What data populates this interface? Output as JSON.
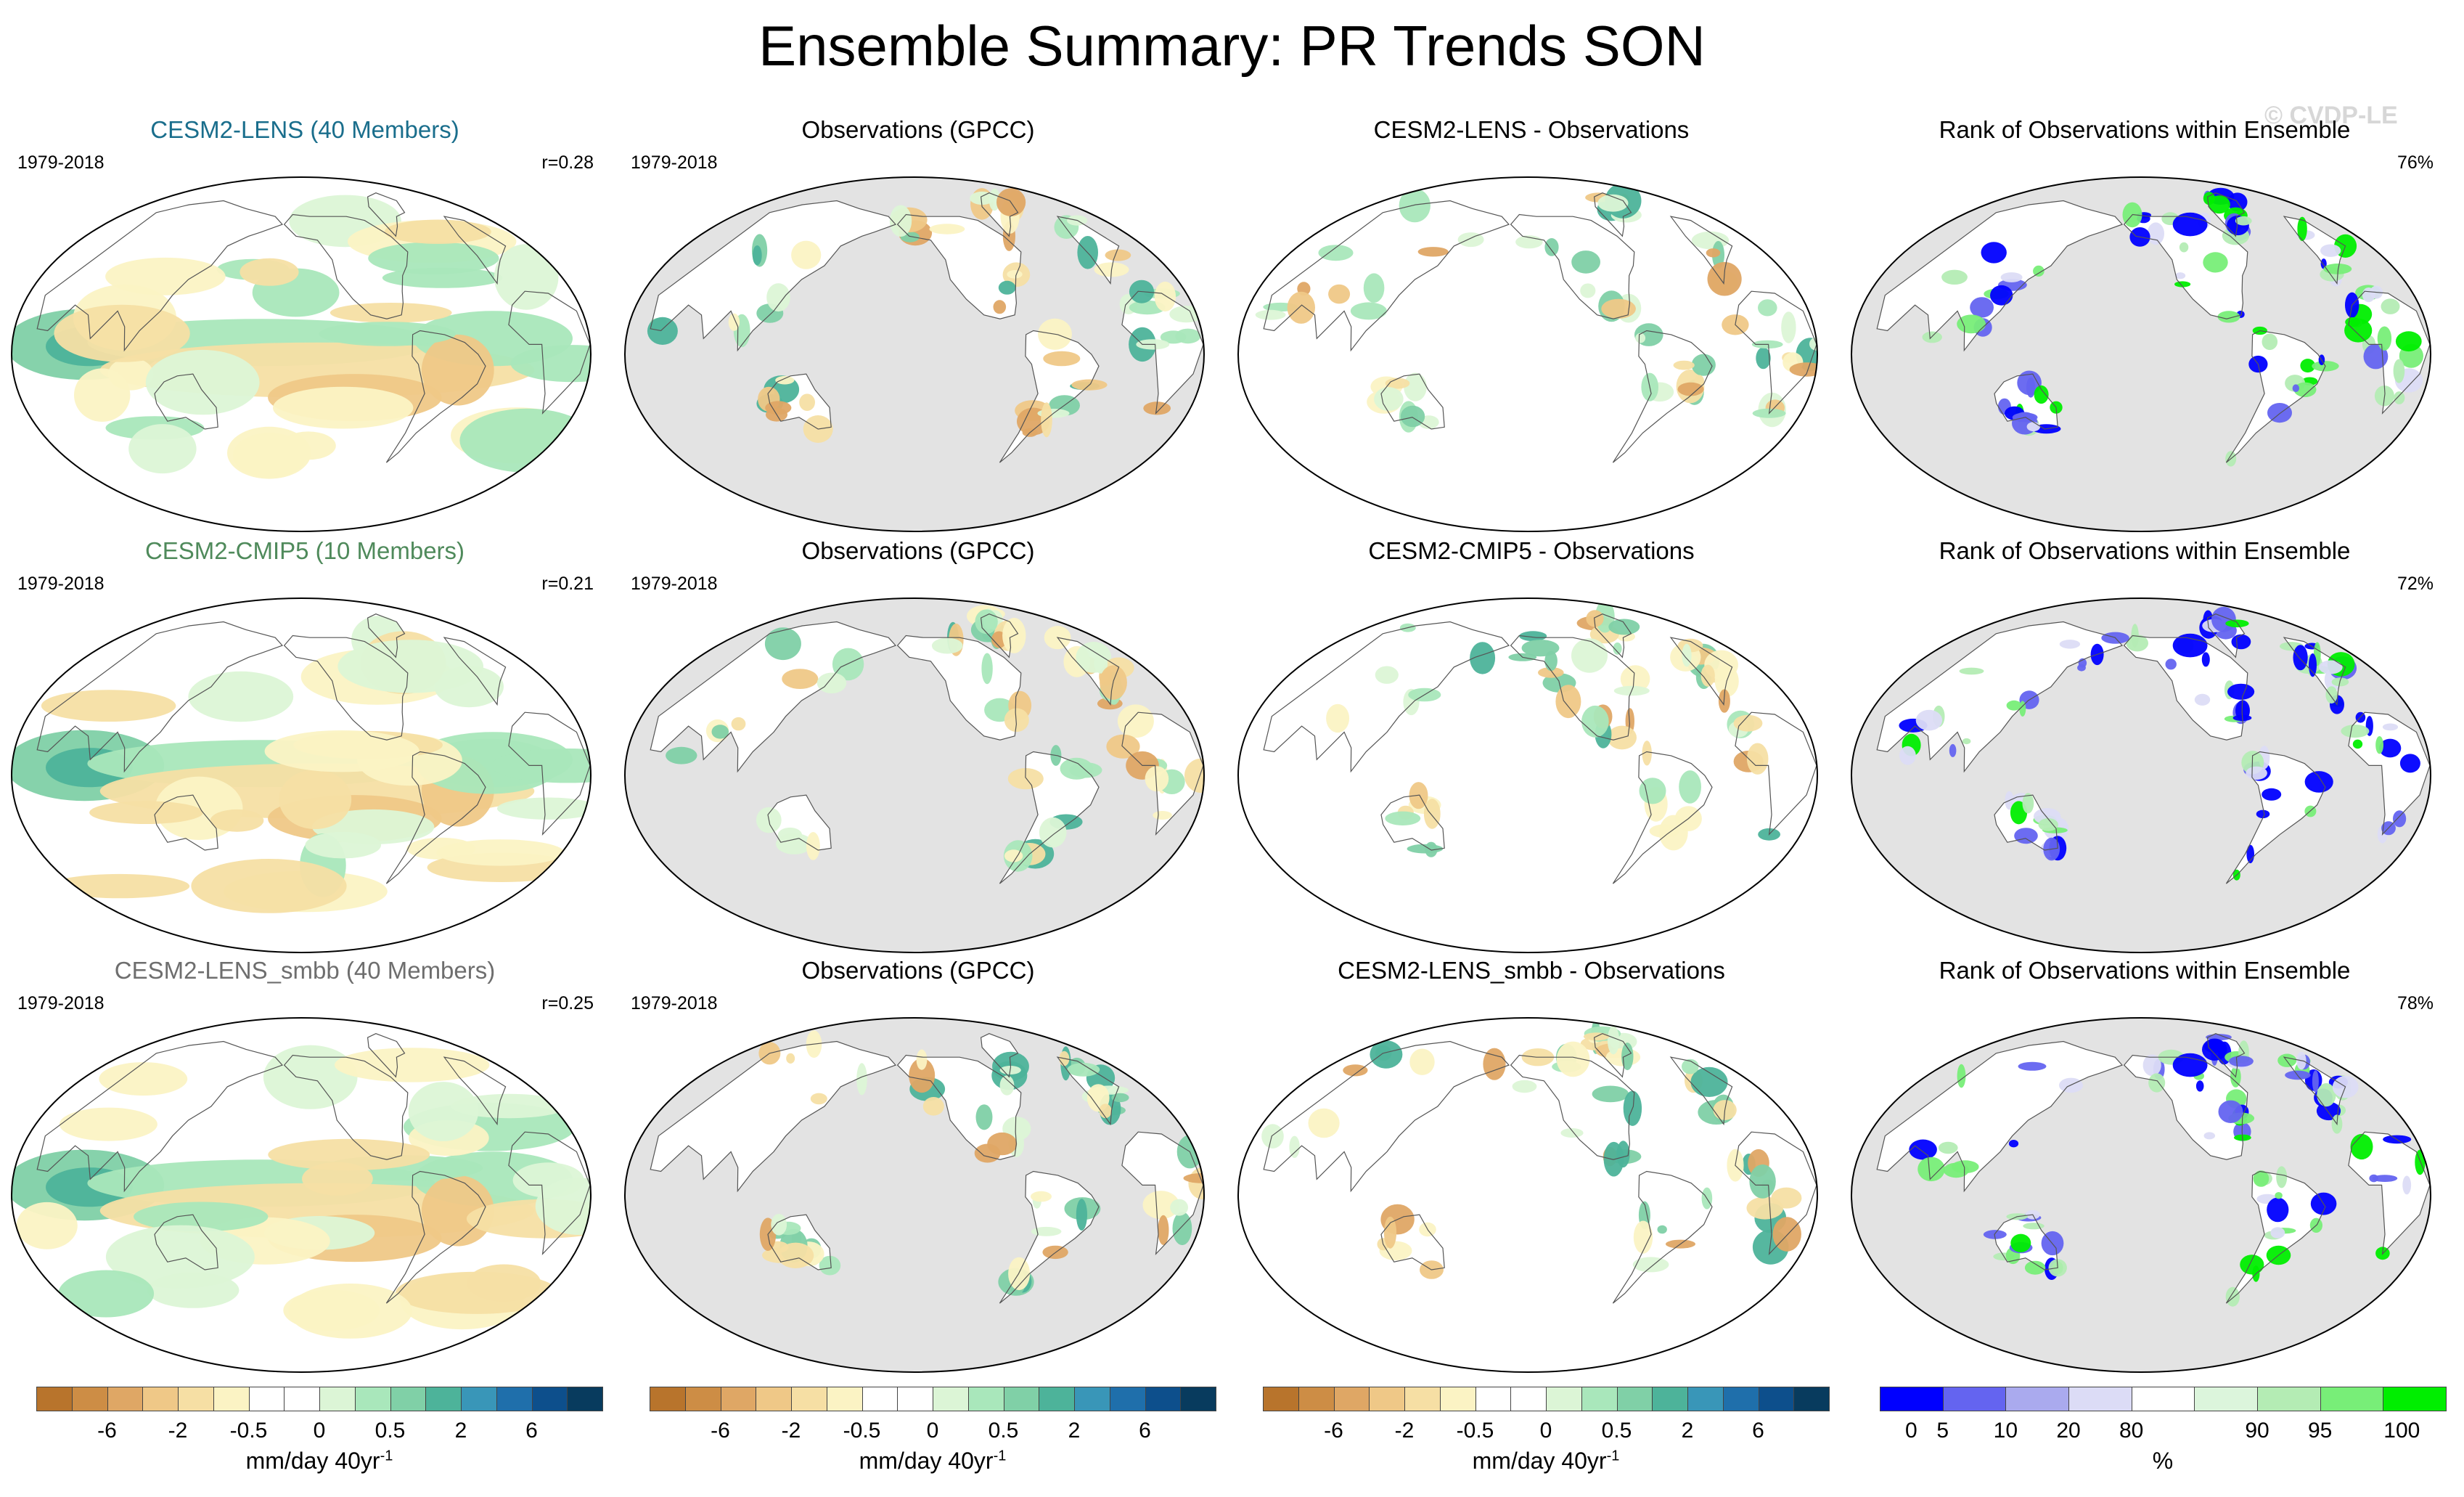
{
  "figure": {
    "title": "Ensemble Summary: PR Trends SON",
    "watermark": "© CVDP-LE"
  },
  "chart_data": [
    {
      "type": "heatmap",
      "row": 1,
      "col": 1,
      "panel_type": "model",
      "title": "CESM2-LENS (40 Members)",
      "title_color": "#1a6e8c",
      "period": "1979-2018",
      "stat": "r=0.28",
      "colorscale": "trend"
    },
    {
      "type": "heatmap",
      "row": 1,
      "col": 2,
      "panel_type": "obs",
      "title": "Observations (GPCC)",
      "title_color": "#000000",
      "period": "1979-2018",
      "stat": "",
      "colorscale": "trend"
    },
    {
      "type": "heatmap",
      "row": 1,
      "col": 3,
      "panel_type": "diff",
      "title": "CESM2-LENS - Observations",
      "title_color": "#000000",
      "period": "",
      "stat": "",
      "colorscale": "trend"
    },
    {
      "type": "heatmap",
      "row": 1,
      "col": 4,
      "panel_type": "rank",
      "title": "Rank of Observations within Ensemble",
      "title_color": "#000000",
      "period": "",
      "stat": "76%",
      "colorscale": "rank"
    },
    {
      "type": "heatmap",
      "row": 2,
      "col": 1,
      "panel_type": "model",
      "title": "CESM2-CMIP5 (10 Members)",
      "title_color": "#4f8a5b",
      "period": "1979-2018",
      "stat": "r=0.21",
      "colorscale": "trend"
    },
    {
      "type": "heatmap",
      "row": 2,
      "col": 2,
      "panel_type": "obs",
      "title": "Observations (GPCC)",
      "title_color": "#000000",
      "period": "1979-2018",
      "stat": "",
      "colorscale": "trend"
    },
    {
      "type": "heatmap",
      "row": 2,
      "col": 3,
      "panel_type": "diff",
      "title": "CESM2-CMIP5 - Observations",
      "title_color": "#000000",
      "period": "",
      "stat": "",
      "colorscale": "trend"
    },
    {
      "type": "heatmap",
      "row": 2,
      "col": 4,
      "panel_type": "rank",
      "title": "Rank of Observations within Ensemble",
      "title_color": "#000000",
      "period": "",
      "stat": "72%",
      "colorscale": "rank"
    },
    {
      "type": "heatmap",
      "row": 3,
      "col": 1,
      "panel_type": "model",
      "title": "CESM2-LENS_smbb (40 Members)",
      "title_color": "#6e6e6e",
      "period": "1979-2018",
      "stat": "r=0.25",
      "colorscale": "trend"
    },
    {
      "type": "heatmap",
      "row": 3,
      "col": 2,
      "panel_type": "obs",
      "title": "Observations (GPCC)",
      "title_color": "#000000",
      "period": "1979-2018",
      "stat": "",
      "colorscale": "trend"
    },
    {
      "type": "heatmap",
      "row": 3,
      "col": 3,
      "panel_type": "diff",
      "title": "CESM2-LENS_smbb - Observations",
      "title_color": "#000000",
      "period": "",
      "stat": "",
      "colorscale": "trend"
    },
    {
      "type": "heatmap",
      "row": 3,
      "col": 4,
      "panel_type": "rank",
      "title": "Rank of Observations within Ensemble",
      "title_color": "#000000",
      "period": "",
      "stat": "78%",
      "colorscale": "rank"
    }
  ],
  "colorbars": {
    "trend": {
      "colors": [
        "#b8742c",
        "#cd8d45",
        "#dfa765",
        "#efc887",
        "#f6dfa4",
        "#fbf3c4",
        "#ffffff",
        "#ffffff",
        "#dcf5d6",
        "#a9e7bb",
        "#80d0a7",
        "#4db39a",
        "#3996b8",
        "#1f6fab",
        "#0d4f8c",
        "#083b5e"
      ],
      "ticks": [
        "-6",
        "-2",
        "-0.5",
        "0",
        "0.5",
        "2",
        "6"
      ],
      "tick_boundaries": [
        2,
        4,
        6,
        8,
        10,
        12,
        14
      ],
      "label": "mm/day 40yr",
      "label_sup": "-1"
    },
    "rank": {
      "colors": [
        "#0000ff",
        "#6464f0",
        "#aaaaee",
        "#dcdcf6",
        "#ffffff",
        "#dcf5dc",
        "#b4ecb4",
        "#78ee78",
        "#00ee00"
      ],
      "ticks": [
        "0",
        "5",
        "10",
        "20",
        "80",
        "90",
        "95",
        "100"
      ],
      "tick_boundaries": [
        0.5,
        1,
        2,
        3,
        4,
        6,
        7,
        8.3
      ],
      "label": "%",
      "label_sup": ""
    }
  }
}
